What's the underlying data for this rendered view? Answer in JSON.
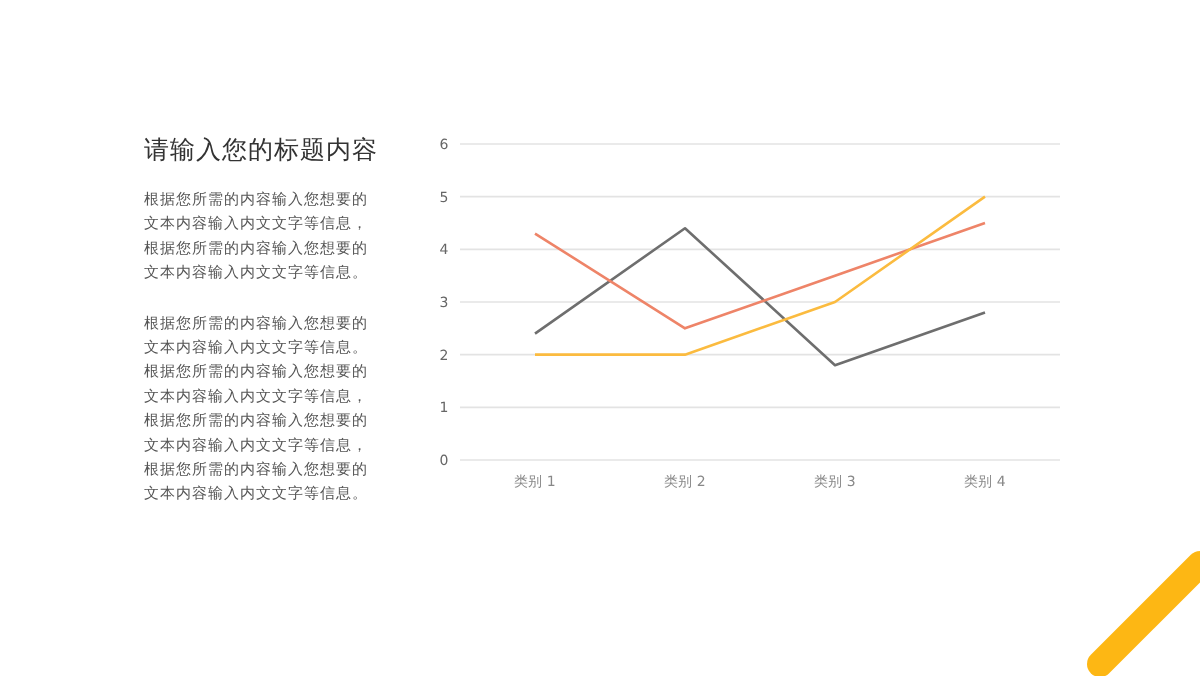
{
  "chart_data": {
    "type": "line",
    "title": "请输入您的标题内容",
    "annotations": [
      "根据您所需的内容输入您想要的文本内容输入内文文字等信息，",
      "根据您所需的内容输入您想要的文本内容输入内文文字等信息。",
      "根据您所需的内容输入您想要的文本内容输入内文文字等信息。",
      "根据您所需的内容输入您想要的文本内容输入内文文字等信息，",
      "根据您所需的内容输入您想要的文本内容输入内文文字等信息，",
      "根据您所需的内容输入您想要的文本内容输入内文文字等信息。"
    ],
    "categories": [
      "类别 1",
      "类别 2",
      "类别 3",
      "类别 4"
    ],
    "series": [
      {
        "color": "#6e6e6e",
        "values": [
          2.4,
          4.4,
          1.8,
          2.8
        ]
      },
      {
        "color": "#ee8468",
        "values": [
          4.3,
          2.5,
          3.5,
          4.5
        ]
      },
      {
        "color": "#fbbb3f",
        "values": [
          2,
          2,
          3,
          5
        ]
      }
    ],
    "ylim": [
      0,
      6
    ],
    "yticks": [
      0,
      1,
      2,
      3,
      4,
      5,
      6
    ],
    "grid": "y",
    "marker": "none",
    "line_style": "solid"
  }
}
